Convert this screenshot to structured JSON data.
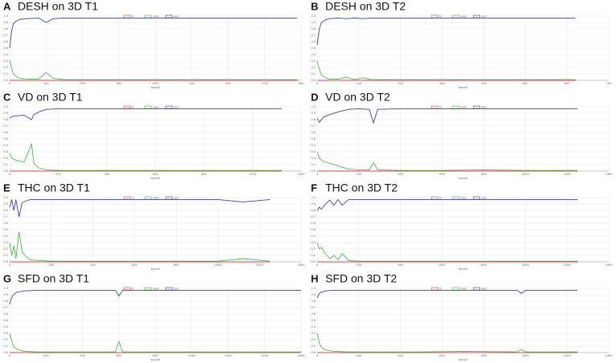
{
  "chart_data": [
    {
      "type": "line",
      "label": "A",
      "title": "DESH on 3D T1",
      "xlabel": "epoch",
      "grid": true,
      "x": [
        0,
        5,
        10,
        20,
        30,
        50,
        80,
        100,
        120,
        150,
        200,
        300,
        400,
        500,
        600,
        700,
        790
      ],
      "series": [
        {
          "name": "lr",
          "color": "#e0404a",
          "values": [
            0,
            0,
            0,
            0,
            0,
            0,
            0,
            0,
            0,
            0,
            0,
            0,
            0,
            0,
            0,
            0,
            0
          ]
        },
        {
          "name": "loss",
          "color": "#4cbb4c",
          "values": [
            0.32,
            0.2,
            0.1,
            0.05,
            0.03,
            0.02,
            0.02,
            0.12,
            0.03,
            0.01,
            0.01,
            0.01,
            0.01,
            0.01,
            0.01,
            0.01,
            0.01
          ]
        },
        {
          "name": "acc",
          "color": "#3f3f9f",
          "values": [
            0.5,
            0.75,
            0.88,
            0.93,
            0.95,
            0.96,
            0.97,
            0.9,
            0.96,
            0.97,
            0.97,
            0.97,
            0.97,
            0.97,
            0.97,
            0.97,
            0.97
          ]
        }
      ],
      "xlim": [
        0,
        800
      ],
      "xticks": [
        0,
        100,
        200,
        300,
        400,
        500,
        600,
        700,
        800
      ],
      "ylim": [
        0,
        1
      ],
      "yticks": [
        {
          "value": 0,
          "label": "0.0"
        },
        0.1,
        0.2,
        0.3,
        0.4,
        0.5,
        0.6,
        0.7,
        0.8,
        0.9,
        {
          "value": 1,
          "label": "1.0"
        }
      ]
    },
    {
      "type": "line",
      "label": "B",
      "title": "DESH on 3D T2",
      "xlabel": "epoch",
      "grid": true,
      "x": [
        0,
        5,
        10,
        20,
        30,
        50,
        70,
        90,
        110,
        130,
        200,
        300,
        400,
        500,
        620
      ],
      "series": [
        {
          "name": "lr",
          "color": "#e0404a",
          "values": [
            0,
            0,
            0,
            0,
            0,
            0,
            0,
            0,
            0,
            0,
            0,
            0,
            0,
            0,
            0
          ]
        },
        {
          "name": "loss",
          "color": "#4cbb4c",
          "values": [
            0.3,
            0.18,
            0.08,
            0.04,
            0.02,
            0.02,
            0.05,
            0.01,
            0.04,
            0.01,
            0.01,
            0.01,
            0.01,
            0.01,
            0.01
          ]
        },
        {
          "name": "acc",
          "color": "#3f3f9f",
          "values": [
            0.55,
            0.8,
            0.9,
            0.94,
            0.96,
            0.97,
            0.96,
            0.97,
            0.96,
            0.97,
            0.97,
            0.97,
            0.97,
            0.97,
            0.97
          ]
        }
      ],
      "xlim": [
        0,
        700
      ],
      "xticks": [
        0,
        100,
        200,
        300,
        400,
        500,
        600,
        700
      ],
      "ylim": [
        0,
        1
      ],
      "yticks": [
        {
          "value": 0,
          "label": "0.0"
        },
        0.1,
        0.2,
        0.3,
        0.4,
        0.5,
        0.6,
        0.7,
        0.8,
        0.9,
        {
          "value": 1,
          "label": "1.0"
        }
      ]
    },
    {
      "type": "line",
      "label": "C",
      "title": "VD on 3D T1",
      "xlabel": "epoch",
      "grid": true,
      "x": [
        0,
        10,
        30,
        60,
        90,
        100,
        120,
        150,
        200,
        300,
        500,
        700,
        900,
        1120
      ],
      "series": [
        {
          "name": "lr",
          "color": "#e0404a",
          "values": [
            0,
            0,
            0,
            0,
            0,
            0,
            0,
            0,
            0,
            0,
            0,
            0,
            0,
            0
          ]
        },
        {
          "name": "loss",
          "color": "#4cbb4c",
          "values": [
            0.28,
            0.2,
            0.16,
            0.14,
            0.42,
            0.12,
            0.05,
            0.02,
            0.01,
            0.01,
            0.01,
            0.01,
            0.01,
            0.01
          ]
        },
        {
          "name": "acc",
          "color": "#3f3f9f",
          "values": [
            0.82,
            0.85,
            0.86,
            0.87,
            0.8,
            0.88,
            0.92,
            0.96,
            0.97,
            0.97,
            0.97,
            0.97,
            0.97,
            0.97
          ]
        }
      ],
      "xlim": [
        0,
        1200
      ],
      "xticks": [
        0,
        200,
        400,
        600,
        800,
        1000,
        1200
      ],
      "ylim": [
        0,
        1
      ],
      "yticks": [
        {
          "value": 0,
          "label": "0.0"
        },
        0.1,
        0.2,
        0.3,
        0.4,
        0.5,
        0.6,
        0.7,
        0.8,
        0.9,
        {
          "value": 1,
          "label": "1.0"
        }
      ]
    },
    {
      "type": "line",
      "label": "D",
      "title": "VD on 3D T2",
      "xlabel": "epoch",
      "grid": true,
      "x": [
        0,
        10,
        30,
        60,
        100,
        150,
        200,
        250,
        270,
        290,
        400,
        600,
        800,
        1000,
        1250
      ],
      "series": [
        {
          "name": "lr",
          "color": "#e0404a",
          "values": [
            0,
            0,
            0,
            0,
            0,
            0,
            0,
            0,
            0,
            0,
            0,
            0,
            0,
            0,
            0
          ]
        },
        {
          "name": "loss",
          "color": "#4cbb4c",
          "values": [
            0.3,
            0.2,
            0.15,
            0.12,
            0.08,
            0.03,
            0.02,
            0.02,
            0.13,
            0.02,
            0.01,
            0.01,
            0.02,
            0.01,
            0.01
          ]
        },
        {
          "name": "acc",
          "color": "#3f3f9f",
          "values": [
            0.82,
            0.76,
            0.84,
            0.88,
            0.92,
            0.96,
            0.97,
            0.96,
            0.75,
            0.96,
            0.97,
            0.97,
            0.97,
            0.97,
            0.97
          ]
        }
      ],
      "xlim": [
        0,
        1400
      ],
      "xticks": [
        0,
        200,
        400,
        600,
        800,
        1000,
        1200,
        1400
      ],
      "ylim": [
        0,
        1
      ],
      "yticks": [
        {
          "value": 0,
          "label": "0.0"
        },
        0.1,
        0.2,
        0.3,
        0.4,
        0.5,
        0.6,
        0.7,
        0.8,
        0.9,
        {
          "value": 1,
          "label": "1.0"
        }
      ]
    },
    {
      "type": "line",
      "label": "E",
      "title": "THC on 3D T1",
      "xlabel": "epoch",
      "grid": true,
      "x": [
        0,
        10,
        20,
        30,
        45,
        60,
        80,
        100,
        150,
        200,
        400,
        600,
        800,
        1000,
        1120,
        1250
      ],
      "series": [
        {
          "name": "lr",
          "color": "#e0404a",
          "values": [
            0,
            0,
            0,
            0,
            0,
            0,
            0,
            0,
            0,
            0,
            0,
            0,
            0,
            0,
            0,
            0
          ]
        },
        {
          "name": "loss",
          "color": "#4cbb4c",
          "values": [
            0.3,
            0.1,
            0.25,
            0.05,
            0.47,
            0.15,
            0.08,
            0.03,
            0.02,
            0.01,
            0.01,
            0.01,
            0.01,
            0.01,
            0.05,
            0.01
          ]
        },
        {
          "name": "acc",
          "color": "#3f3f9f",
          "values": [
            0.85,
            0.97,
            0.8,
            0.97,
            0.7,
            0.92,
            0.95,
            0.97,
            0.97,
            0.97,
            0.97,
            0.97,
            0.97,
            0.97,
            0.93,
            0.97
          ]
        }
      ],
      "xlim": [
        0,
        1400
      ],
      "xticks": [
        0,
        200,
        400,
        600,
        800,
        1000,
        1200,
        1400
      ],
      "ylim": [
        0,
        1
      ],
      "yticks": [
        {
          "value": 0,
          "label": "0.0"
        },
        0.1,
        0.2,
        0.3,
        0.4,
        0.5,
        0.6,
        0.7,
        0.8,
        0.9,
        {
          "value": 1,
          "label": "1.0"
        }
      ]
    },
    {
      "type": "line",
      "label": "F",
      "title": "THC on 3D T2",
      "xlabel": "epoch",
      "grid": true,
      "x": [
        0,
        10,
        20,
        40,
        60,
        80,
        100,
        120,
        150,
        200,
        400,
        600,
        800,
        1000,
        1250
      ],
      "series": [
        {
          "name": "lr",
          "color": "#e0404a",
          "values": [
            0,
            0,
            0,
            0,
            0,
            0,
            0,
            0,
            0,
            0,
            0,
            0,
            0,
            0,
            0
          ]
        },
        {
          "name": "loss",
          "color": "#4cbb4c",
          "values": [
            0.3,
            0.2,
            0.22,
            0.12,
            0.05,
            0.1,
            0.03,
            0.13,
            0.02,
            0.01,
            0.01,
            0.01,
            0.01,
            0.01,
            0.01
          ]
        },
        {
          "name": "acc",
          "color": "#3f3f9f",
          "values": [
            0.8,
            0.85,
            0.82,
            0.9,
            0.96,
            0.88,
            0.97,
            0.88,
            0.97,
            0.97,
            0.97,
            0.97,
            0.97,
            0.97,
            0.97
          ]
        }
      ],
      "xlim": [
        0,
        1400
      ],
      "xticks": [
        0,
        200,
        400,
        600,
        800,
        1000,
        1200,
        1400
      ],
      "ylim": [
        0,
        1
      ],
      "yticks": [
        {
          "value": 0,
          "label": "0.0"
        },
        0.1,
        0.2,
        0.3,
        0.4,
        0.5,
        0.6,
        0.7,
        0.8,
        0.9,
        {
          "value": 1,
          "label": "1.0"
        }
      ]
    },
    {
      "type": "line",
      "label": "G",
      "title": "SFD on 3D T1",
      "xlabel": "epoch",
      "grid": true,
      "x": [
        0,
        10,
        20,
        40,
        80,
        150,
        300,
        580,
        600,
        620,
        800,
        1000,
        1200,
        1400,
        1600
      ],
      "series": [
        {
          "name": "lr",
          "color": "#e0404a",
          "values": [
            0,
            0,
            0,
            0,
            0,
            0,
            0,
            0,
            0,
            0,
            0,
            0,
            0,
            0,
            0
          ]
        },
        {
          "name": "loss",
          "color": "#4cbb4c",
          "values": [
            0.3,
            0.2,
            0.1,
            0.05,
            0.02,
            0.01,
            0.01,
            0.01,
            0.17,
            0.01,
            0.01,
            0.01,
            0.01,
            0.01,
            0.01
          ]
        },
        {
          "name": "acc",
          "color": "#3f3f9f",
          "values": [
            0.75,
            0.85,
            0.9,
            0.94,
            0.96,
            0.97,
            0.97,
            0.97,
            0.88,
            0.97,
            0.97,
            0.97,
            0.97,
            0.97,
            0.97
          ]
        }
      ],
      "xlim": [
        0,
        1600
      ],
      "xticks": [
        0,
        200,
        400,
        600,
        800,
        1000,
        1200,
        1400,
        1600
      ],
      "ylim": [
        0,
        1
      ],
      "yticks": [
        {
          "value": 0,
          "label": "0.0"
        },
        0.1,
        0.2,
        0.3,
        0.4,
        0.5,
        0.6,
        0.7,
        0.8,
        0.9,
        {
          "value": 1,
          "label": "1.0"
        }
      ]
    },
    {
      "type": "line",
      "label": "H",
      "title": "SFD on 3D T2",
      "xlabel": "epoch",
      "grid": true,
      "x": [
        0,
        10,
        20,
        40,
        80,
        150,
        300,
        500,
        700,
        960,
        980,
        1000,
        1250
      ],
      "series": [
        {
          "name": "lr",
          "color": "#e0404a",
          "values": [
            0,
            0,
            0,
            0,
            0,
            0,
            0,
            0,
            0,
            0,
            0,
            0,
            0
          ]
        },
        {
          "name": "loss",
          "color": "#4cbb4c",
          "values": [
            0.3,
            0.15,
            0.08,
            0.04,
            0.02,
            0.01,
            0.01,
            0.01,
            0.02,
            0.01,
            0.05,
            0.01,
            0.01
          ]
        },
        {
          "name": "acc",
          "color": "#3f3f9f",
          "values": [
            0.85,
            0.92,
            0.94,
            0.96,
            0.97,
            0.97,
            0.97,
            0.97,
            0.97,
            0.97,
            0.92,
            0.97,
            0.97
          ]
        }
      ],
      "xlim": [
        0,
        1400
      ],
      "xticks": [
        0,
        200,
        400,
        600,
        800,
        1000,
        1200,
        1400
      ],
      "ylim": [
        0,
        1
      ],
      "yticks": [
        {
          "value": 0,
          "label": "0.0"
        },
        0.1,
        0.2,
        0.3,
        0.4,
        0.5,
        0.6,
        0.7,
        0.8,
        0.9,
        {
          "value": 1,
          "label": "1.0"
        }
      ]
    }
  ]
}
